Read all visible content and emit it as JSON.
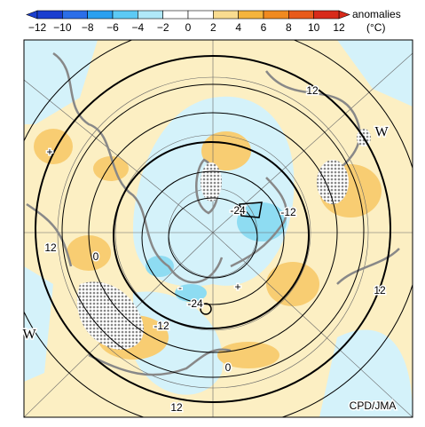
{
  "colorbar": {
    "ticks": [
      "−12",
      "−10",
      "−8",
      "−6",
      "−4",
      "−2",
      "0",
      "2",
      "4",
      "6",
      "8",
      "10",
      "12"
    ],
    "title": "anomalies",
    "unit": "(°C)"
  },
  "map": {
    "labels": [
      "12",
      "W",
      "+",
      "-24",
      "-12",
      "12",
      "0",
      "12",
      "-",
      "+",
      "-24",
      "-12",
      "W",
      "0",
      "12"
    ]
  },
  "credit": "CPD/JMA"
}
